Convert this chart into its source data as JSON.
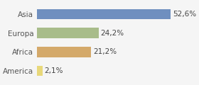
{
  "categories": [
    "America",
    "Africa",
    "Europa",
    "Asia"
  ],
  "values": [
    2.1,
    21.2,
    24.2,
    52.6
  ],
  "labels": [
    "2,1%",
    "21,2%",
    "24,2%",
    "52,6%"
  ],
  "bar_colors": [
    "#e8d87a",
    "#d4a96a",
    "#a8bc8a",
    "#6f8fbf"
  ],
  "background_color": "#f5f5f5",
  "xlim": [
    0,
    60
  ],
  "label_fontsize": 7.5,
  "tick_fontsize": 7.5
}
